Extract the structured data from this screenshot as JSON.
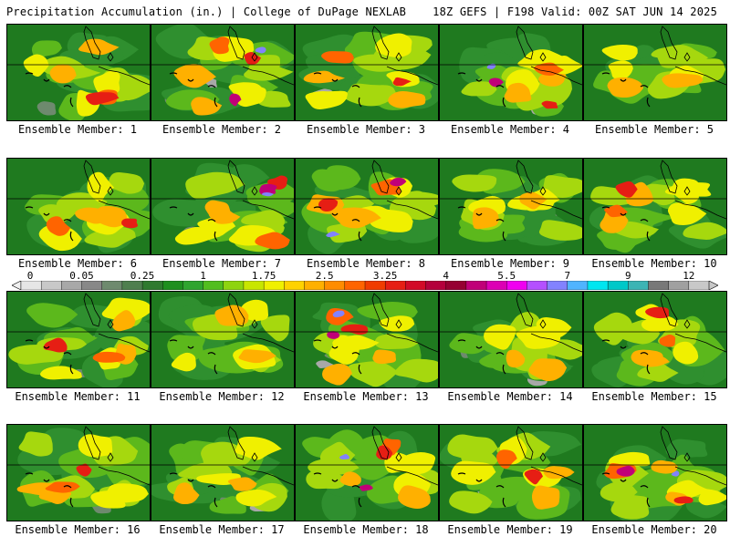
{
  "header": {
    "title_left": "Precipitation Accumulation (in.) | College of DuPage NEXLAB",
    "title_right": "18Z GEFS | F198 Valid: 00Z SAT JUN 14 2025"
  },
  "colorbar": {
    "tick_labels": [
      "0",
      "0.05",
      "0.25",
      "1",
      "1.75",
      "2.5",
      "3.25",
      "4",
      "5.5",
      "7",
      "9",
      "12"
    ],
    "colors": [
      "#e6e6e6",
      "#c8c8c8",
      "#a8a8a8",
      "#888888",
      "#6e8a6e",
      "#4f7f4f",
      "#2f7a2f",
      "#1e8f1e",
      "#2fa52f",
      "#52be1e",
      "#8ed40f",
      "#c8e600",
      "#f0f000",
      "#ffd200",
      "#ffb000",
      "#ff8c00",
      "#ff6400",
      "#f03c00",
      "#e61e14",
      "#d20a28",
      "#b4003c",
      "#960032",
      "#c00078",
      "#dc00b4",
      "#f000f0",
      "#b450ff",
      "#8282ff",
      "#50b4ff",
      "#00e6f0",
      "#00c8c8",
      "#3cb4b4",
      "#787878",
      "#a0a0a0",
      "#c8c8c8"
    ]
  },
  "panels": [
    {
      "label": "Ensemble Member: 1",
      "intensity": 2
    },
    {
      "label": "Ensemble Member: 2",
      "intensity": 3
    },
    {
      "label": "Ensemble Member: 3",
      "intensity": 2
    },
    {
      "label": "Ensemble Member: 4",
      "intensity": 3
    },
    {
      "label": "Ensemble Member: 5",
      "intensity": 1
    },
    {
      "label": "Ensemble Member: 6",
      "intensity": 2
    },
    {
      "label": "Ensemble Member: 7",
      "intensity": 3
    },
    {
      "label": "Ensemble Member: 8",
      "intensity": 3
    },
    {
      "label": "Ensemble Member: 9",
      "intensity": 1
    },
    {
      "label": "Ensemble Member: 10",
      "intensity": 2
    },
    {
      "label": "Ensemble Member: 11",
      "intensity": 2
    },
    {
      "label": "Ensemble Member: 12",
      "intensity": 1
    },
    {
      "label": "Ensemble Member: 13",
      "intensity": 3
    },
    {
      "label": "Ensemble Member: 14",
      "intensity": 1
    },
    {
      "label": "Ensemble Member: 15",
      "intensity": 2
    },
    {
      "label": "Ensemble Member: 16",
      "intensity": 2
    },
    {
      "label": "Ensemble Member: 17",
      "intensity": 1
    },
    {
      "label": "Ensemble Member: 18",
      "intensity": 3
    },
    {
      "label": "Ensemble Member: 19",
      "intensity": 2
    },
    {
      "label": "Ensemble Member: 20",
      "intensity": 3
    }
  ]
}
